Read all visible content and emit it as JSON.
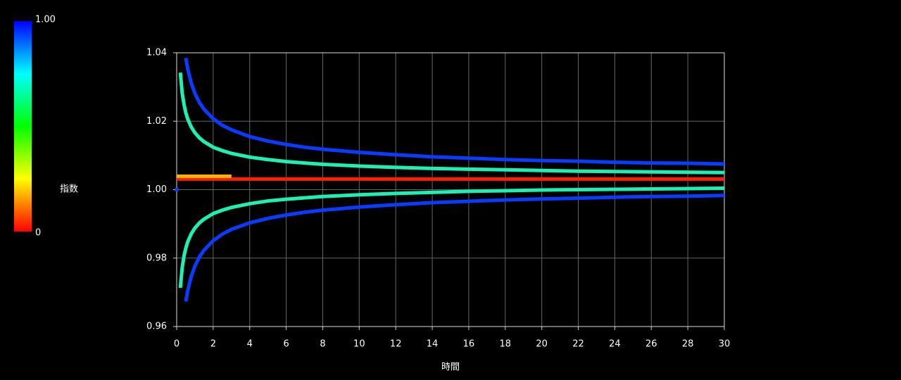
{
  "chart_data": {
    "type": "scatter",
    "x_label": "時間",
    "y_label": "指数",
    "xlim": [
      0,
      30
    ],
    "xticks": [
      0,
      2,
      4,
      6,
      8,
      10,
      12,
      14,
      16,
      18,
      20,
      22,
      24,
      26,
      28,
      30
    ],
    "ylim": [
      0.96,
      1.04
    ],
    "yticks": [
      0.96,
      0.98,
      {
        "value": 1,
        "label": "1.00"
      },
      1.02,
      1.04
    ],
    "grid": true,
    "colorbar": {
      "lim": [
        0,
        1
      ],
      "ticks": [
        0,
        {
          "value": 1,
          "label": "1.00"
        }
      ],
      "colors": [
        "#ff0000",
        "#ffff00",
        "#00ff00",
        "#00ffff",
        "#0000ff"
      ]
    },
    "series": [
      {
        "color": "#0a3cff",
        "x": [
          0.5,
          0.6,
          0.8,
          1,
          1.25,
          1.5,
          2,
          2.5,
          3,
          4,
          5,
          6,
          7,
          8,
          10,
          12,
          14,
          16,
          18,
          20,
          22,
          24,
          26,
          28,
          30
        ],
        "values": [
          1.0385,
          1.0354,
          1.0311,
          1.0281,
          1.0254,
          1.0235,
          1.0207,
          1.0188,
          1.0175,
          1.0155,
          1.0142,
          1.0132,
          1.0124,
          1.0118,
          1.0109,
          1.0102,
          1.0096,
          1.0092,
          1.0088,
          1.0085,
          1.0083,
          1.008,
          1.0078,
          1.0077,
          1.0075
        ]
      },
      {
        "color": "#0a3cff",
        "x": [
          0.5,
          0.6,
          0.8,
          1,
          1.25,
          1.5,
          2,
          2.5,
          3,
          4,
          5,
          6,
          7,
          8,
          10,
          12,
          14,
          16,
          18,
          20,
          22,
          24,
          26,
          28,
          30
        ],
        "values": [
          0.9673,
          0.9704,
          0.9747,
          0.9777,
          0.9804,
          0.9823,
          0.9851,
          0.987,
          0.9884,
          0.9903,
          0.9916,
          0.9926,
          0.9934,
          0.994,
          0.9949,
          0.9956,
          0.9962,
          0.9966,
          0.997,
          0.9973,
          0.9975,
          0.9978,
          0.998,
          0.9981,
          0.9983
        ]
      },
      {
        "color": "#1ef0b4",
        "x": [
          0.2,
          0.3,
          0.4,
          0.5,
          0.6,
          0.8,
          1,
          1.25,
          1.5,
          2,
          2.5,
          3,
          4,
          5,
          6,
          7,
          8,
          10,
          12,
          14,
          16,
          18,
          20,
          22,
          24,
          26,
          28,
          30
        ],
        "values": [
          1.0342,
          1.0283,
          1.0249,
          1.0225,
          1.0207,
          1.0183,
          1.0166,
          1.0151,
          1.014,
          1.0124,
          1.0114,
          1.0106,
          1.0095,
          1.0088,
          1.0082,
          1.0078,
          1.0074,
          1.0069,
          1.0065,
          1.0062,
          1.006,
          1.0058,
          1.0056,
          1.0054,
          1.0053,
          1.0052,
          1.0051,
          1.005
        ]
      },
      {
        "color": "#1ef0b4",
        "x": [
          0.2,
          0.3,
          0.4,
          0.5,
          0.6,
          0.8,
          1,
          1.25,
          1.5,
          2,
          2.5,
          3,
          4,
          5,
          6,
          7,
          8,
          10,
          12,
          14,
          16,
          18,
          20,
          22,
          24,
          26,
          28,
          30
        ],
        "values": [
          0.9713,
          0.9771,
          0.9806,
          0.9829,
          0.9847,
          0.9871,
          0.9888,
          0.9903,
          0.9914,
          0.993,
          0.994,
          0.9948,
          0.9959,
          0.9967,
          0.9972,
          0.9976,
          0.998,
          0.9985,
          0.9989,
          0.9992,
          0.9995,
          0.9997,
          0.9999,
          1,
          1.0001,
          1.0002,
          1.0003,
          1.0004
        ]
      },
      {
        "color": "#ff2000",
        "x": [
          0,
          30
        ],
        "values": [
          1.0031,
          1.0031
        ]
      },
      {
        "color": "#ffb000",
        "x": [
          0,
          3
        ],
        "values": [
          1.0039,
          1.0039
        ]
      },
      {
        "color": "#0a3cff",
        "x": [
          0
        ],
        "values": [
          1
        ]
      }
    ]
  }
}
